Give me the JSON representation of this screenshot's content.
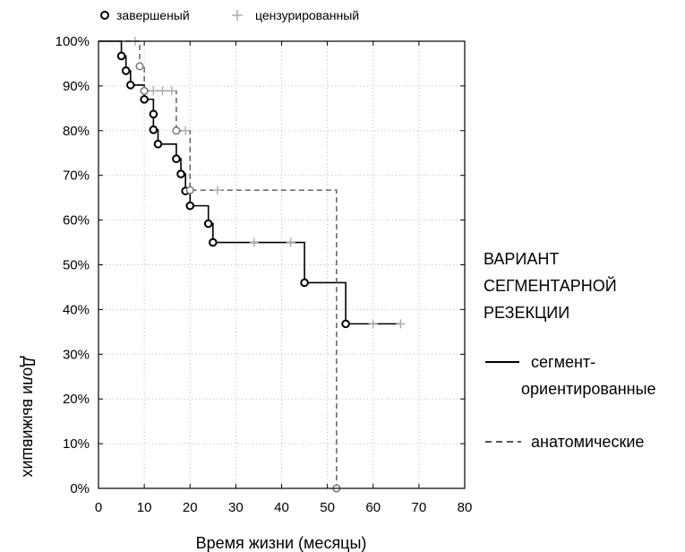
{
  "chart_data": {
    "type": "line",
    "subtype": "kaplan-meier",
    "xlabel": "Время жизни (месяцы)",
    "ylabel": "Доли выживших",
    "xlim": [
      0,
      80
    ],
    "ylim": [
      0,
      1
    ],
    "x_ticks": [
      0,
      10,
      20,
      30,
      40,
      50,
      60,
      70,
      80
    ],
    "y_ticks": [
      "0%",
      "10%",
      "20%",
      "30%",
      "40%",
      "50%",
      "60%",
      "70%",
      "80%",
      "90%",
      "100%"
    ],
    "grid": true,
    "marker_legend": {
      "position": "top-left",
      "items": [
        {
          "marker": "circle",
          "label": "завершеный"
        },
        {
          "marker": "plus",
          "label": "цензурированный"
        }
      ]
    },
    "legend": {
      "position": "right",
      "title_lines": [
        "ВАРИАНТ",
        "СЕГМЕНТАРНОЙ",
        "РЕЗЕКЦИИ"
      ],
      "items": [
        {
          "style": "solid",
          "label_lines": [
            "сегмент-",
            "ориентированные"
          ]
        },
        {
          "style": "dashed",
          "label_lines": [
            "анатомические"
          ]
        }
      ]
    },
    "series": [
      {
        "name": "сегмент-ориентированные",
        "style": "solid",
        "color": "#000000",
        "steps": [
          [
            0,
            1.0
          ],
          [
            5,
            0.967
          ],
          [
            6,
            0.934
          ],
          [
            7,
            0.902
          ],
          [
            10,
            0.87
          ],
          [
            12,
            0.837
          ],
          [
            12,
            0.802
          ],
          [
            13,
            0.77
          ],
          [
            17,
            0.737
          ],
          [
            18,
            0.703
          ],
          [
            19,
            0.665
          ],
          [
            20,
            0.632
          ],
          [
            24,
            0.592
          ],
          [
            25,
            0.55
          ],
          [
            45,
            0.46
          ],
          [
            54,
            0.368
          ]
        ],
        "end_x": 66,
        "events": [
          [
            5,
            0.967
          ],
          [
            6,
            0.934
          ],
          [
            7,
            0.902
          ],
          [
            10,
            0.87
          ],
          [
            12,
            0.837
          ],
          [
            12,
            0.802
          ],
          [
            13,
            0.77
          ],
          [
            17,
            0.737
          ],
          [
            18,
            0.703
          ],
          [
            19,
            0.665
          ],
          [
            20,
            0.632
          ],
          [
            24,
            0.592
          ],
          [
            25,
            0.55
          ],
          [
            45,
            0.46
          ],
          [
            54,
            0.368
          ]
        ],
        "censored": [
          [
            34,
            0.55
          ],
          [
            42,
            0.55
          ],
          [
            60,
            0.368
          ],
          [
            66,
            0.368
          ]
        ]
      },
      {
        "name": "анатомические",
        "style": "dashed",
        "color": "#555555",
        "steps": [
          [
            0,
            1.0
          ],
          [
            9,
            0.944
          ],
          [
            10,
            0.889
          ],
          [
            17,
            0.8
          ],
          [
            20,
            0.667
          ],
          [
            52,
            0.0
          ]
        ],
        "end_x": 52,
        "events": [
          [
            9,
            0.944
          ],
          [
            10,
            0.889
          ],
          [
            17,
            0.8
          ],
          [
            20,
            0.667
          ],
          [
            52,
            0.0
          ]
        ],
        "censored": [
          [
            8,
            1.0
          ],
          [
            12,
            0.889
          ],
          [
            14,
            0.889
          ],
          [
            16,
            0.889
          ],
          [
            19,
            0.8
          ],
          [
            26,
            0.667
          ]
        ]
      }
    ]
  }
}
